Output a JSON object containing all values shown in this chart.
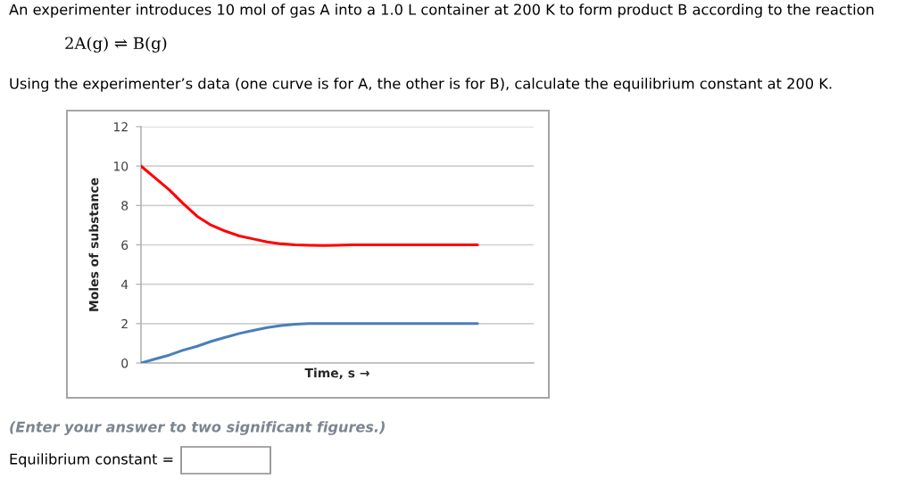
{
  "chart_data": {
    "type": "line",
    "title": "An experimenter introduces 10 mol of gas A into a 1.0 L container at 200 K to form product B according to the reaction",
    "subtitle": "2A(g) ⇌ B(g)",
    "annotations": [
      "Using the experimenter’s data (one curve is for A, the other is for B), calculate the equilibrium constant at 200 K.",
      "(Enter your answer to two significant figures.)",
      "Equilibrium constant ="
    ],
    "xlabel": "Time, s →",
    "ylabel": "Moles of substance",
    "categories": [
      null,
      null,
      null,
      null,
      null,
      null,
      null,
      null,
      null,
      null,
      null,
      null,
      null,
      null,
      null,
      null,
      null,
      null,
      null,
      null,
      null,
      null,
      null,
      null,
      null,
      null,
      null,
      null,
      null
    ],
    "series": [
      {
        "color": "#ff0000",
        "values": [
          10,
          9.4,
          8.8,
          8.1,
          7.45,
          7.0,
          6.7,
          6.45,
          6.3,
          6.15,
          6.05,
          6.0,
          5.98,
          5.97,
          5.98,
          6.0,
          6.0,
          6.0,
          6.0,
          6.0,
          6.0,
          6.0,
          6.0,
          6.0,
          6.0,
          null,
          null,
          null,
          null
        ]
      },
      {
        "color": "#4a7ebb",
        "values": [
          0,
          0.2,
          0.4,
          0.65,
          0.85,
          1.1,
          1.3,
          1.5,
          1.65,
          1.8,
          1.9,
          1.97,
          2.0,
          2.0,
          2.0,
          2.0,
          2.0,
          2.0,
          2.0,
          2.0,
          2.0,
          2.0,
          2.0,
          2.0,
          2.0,
          null,
          null,
          null,
          null
        ]
      }
    ],
    "ylim": [
      0,
      12
    ],
    "yticks": [
      0,
      2,
      4,
      6,
      8,
      10,
      12
    ],
    "grid": "y",
    "tick_labels": "y"
  }
}
